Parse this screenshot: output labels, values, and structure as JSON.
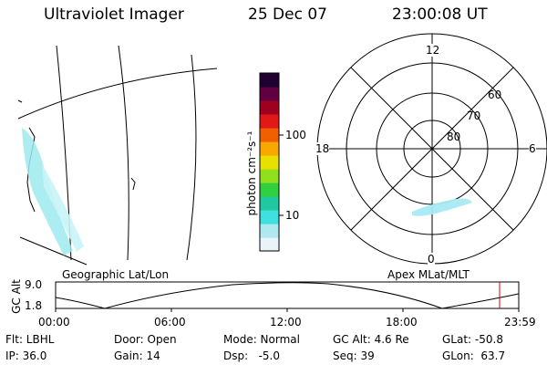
{
  "header": {
    "instrument": "Ultraviolet Imager",
    "date": "25 Dec 07",
    "time": "23:00:08 UT"
  },
  "colorbar": {
    "label": "photon cm⁻²s⁻¹",
    "ticks": [
      "100",
      "10"
    ],
    "colors": [
      "#e8f4f8",
      "#b0e8f0",
      "#40e0e0",
      "#20c8a0",
      "#30d040",
      "#90e020",
      "#e8e000",
      "#f8a800",
      "#f06000",
      "#e01818",
      "#a00020",
      "#600040",
      "#200030"
    ]
  },
  "polar_plot": {
    "mlt_labels": {
      "top": "12",
      "left": "18",
      "right": "6",
      "bottom": "0"
    },
    "mlat_labels": [
      "60",
      "70",
      "80"
    ]
  },
  "projection_labels": {
    "left": "Geographic Lat/Lon",
    "right": "Apex MLat/MLT"
  },
  "altitude_plot": {
    "axis_label": "GC Alt",
    "y_ticks": [
      "9.0",
      "1.8"
    ],
    "x_ticks": [
      "00:00",
      "06:00",
      "12:00",
      "18:00",
      "23:59"
    ]
  },
  "info": {
    "flt": "Flt: LBHL",
    "ip": "IP: 36.0",
    "door": "Door: Open",
    "gain": "Gain: 14",
    "mode": "Mode: Normal",
    "dsp": "Dsp:   -5.0",
    "gc_alt": "GC Alt: 4.6 Re",
    "seq": "Seq: 39",
    "glat": "GLat: -50.8",
    "glon": "GLon:  63.7"
  }
}
